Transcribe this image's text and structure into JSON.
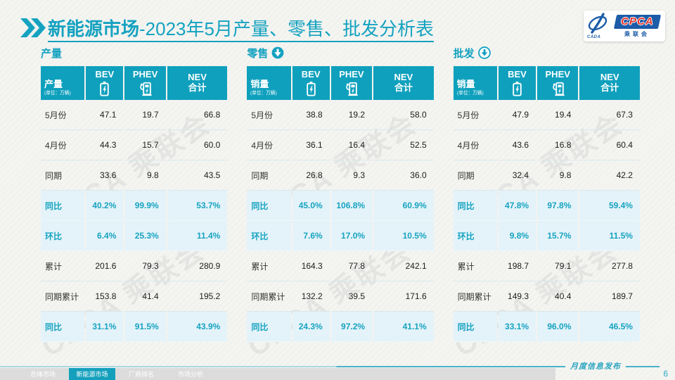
{
  "header": {
    "title_main": "新能源市场",
    "title_rest": "-2023年5月产量、零售、批发分析表",
    "logo": {
      "emblem_caption": "CADA",
      "brand": "CPCA",
      "brand_sub": "乘联会"
    }
  },
  "watermark": "CPCA 乘联会",
  "tables": [
    {
      "title": "产量",
      "arrow": "none",
      "corner": "产量",
      "unit": "(单位：万辆)",
      "col_bev": "BEV",
      "col_phev": "PHEV",
      "col_total_1": "NEV",
      "col_total_2": "合计",
      "rows": [
        {
          "label": "5月份",
          "v": [
            "47.1",
            "19.7",
            "66.8"
          ],
          "hl": false
        },
        {
          "label": "4月份",
          "v": [
            "44.3",
            "15.7",
            "60.0"
          ],
          "hl": false
        },
        {
          "label": "同期",
          "v": [
            "33.6",
            "9.8",
            "43.5"
          ],
          "hl": false
        },
        {
          "label": "同比",
          "v": [
            "40.2%",
            "99.9%",
            "53.7%"
          ],
          "hl": true
        },
        {
          "label": "环比",
          "v": [
            "6.4%",
            "25.3%",
            "11.4%"
          ],
          "hl": true
        },
        {
          "label": "累计",
          "v": [
            "201.6",
            "79.3",
            "280.9"
          ],
          "hl": false
        },
        {
          "label": "同期累计",
          "v": [
            "153.8",
            "41.4",
            "195.2"
          ],
          "hl": false
        },
        {
          "label": "同比",
          "v": [
            "31.1%",
            "91.5%",
            "43.9%"
          ],
          "hl": true
        }
      ]
    },
    {
      "title": "零售",
      "arrow": "filled",
      "corner": "销量",
      "unit": "(单位：万辆)",
      "col_bev": "BEV",
      "col_phev": "PHEV",
      "col_total_1": "NEV",
      "col_total_2": "合计",
      "rows": [
        {
          "label": "5月份",
          "v": [
            "38.8",
            "19.2",
            "58.0"
          ],
          "hl": false
        },
        {
          "label": "4月份",
          "v": [
            "36.1",
            "16.4",
            "52.5"
          ],
          "hl": false
        },
        {
          "label": "同期",
          "v": [
            "26.8",
            "9.3",
            "36.0"
          ],
          "hl": false
        },
        {
          "label": "同比",
          "v": [
            "45.0%",
            "106.8%",
            "60.9%"
          ],
          "hl": true
        },
        {
          "label": "环比",
          "v": [
            "7.6%",
            "17.0%",
            "10.5%"
          ],
          "hl": true
        },
        {
          "label": "累计",
          "v": [
            "164.3",
            "77.8",
            "242.1"
          ],
          "hl": false
        },
        {
          "label": "同期累计",
          "v": [
            "132.2",
            "39.5",
            "171.6"
          ],
          "hl": false
        },
        {
          "label": "同比",
          "v": [
            "24.3%",
            "97.2%",
            "41.1%"
          ],
          "hl": true
        }
      ]
    },
    {
      "title": "批发",
      "arrow": "outline",
      "corner": "销量",
      "unit": "(单位：万辆)",
      "col_bev": "BEV",
      "col_phev": "PHEV",
      "col_total_1": "NEV",
      "col_total_2": "合计",
      "rows": [
        {
          "label": "5月份",
          "v": [
            "47.9",
            "19.4",
            "67.3"
          ],
          "hl": false
        },
        {
          "label": "4月份",
          "v": [
            "43.6",
            "16.8",
            "60.4"
          ],
          "hl": false
        },
        {
          "label": "同期",
          "v": [
            "32.4",
            "9.8",
            "42.2"
          ],
          "hl": false
        },
        {
          "label": "同比",
          "v": [
            "47.8%",
            "97.8%",
            "59.4%"
          ],
          "hl": true
        },
        {
          "label": "环比",
          "v": [
            "9.8%",
            "15.7%",
            "11.5%"
          ],
          "hl": true
        },
        {
          "label": "累计",
          "v": [
            "198.7",
            "79.1",
            "277.8"
          ],
          "hl": false
        },
        {
          "label": "同期累计",
          "v": [
            "149.3",
            "40.4",
            "189.7"
          ],
          "hl": false
        },
        {
          "label": "同比",
          "v": [
            "33.1%",
            "96.0%",
            "46.5%"
          ],
          "hl": true
        }
      ]
    }
  ],
  "footer": {
    "tabs": [
      {
        "label": "总体市场",
        "active": false
      },
      {
        "label": "新能源市场",
        "active": true
      },
      {
        "label": "厂商排名",
        "active": false
      },
      {
        "label": "市场分析",
        "active": false
      }
    ],
    "publication": "月度信息发布",
    "page": "6"
  },
  "colors": {
    "teal": "#14a0bd",
    "highlight_row_bg": "#e4f3f9",
    "logo_blue": "#1c5ca8",
    "logo_red": "#e6332a"
  }
}
